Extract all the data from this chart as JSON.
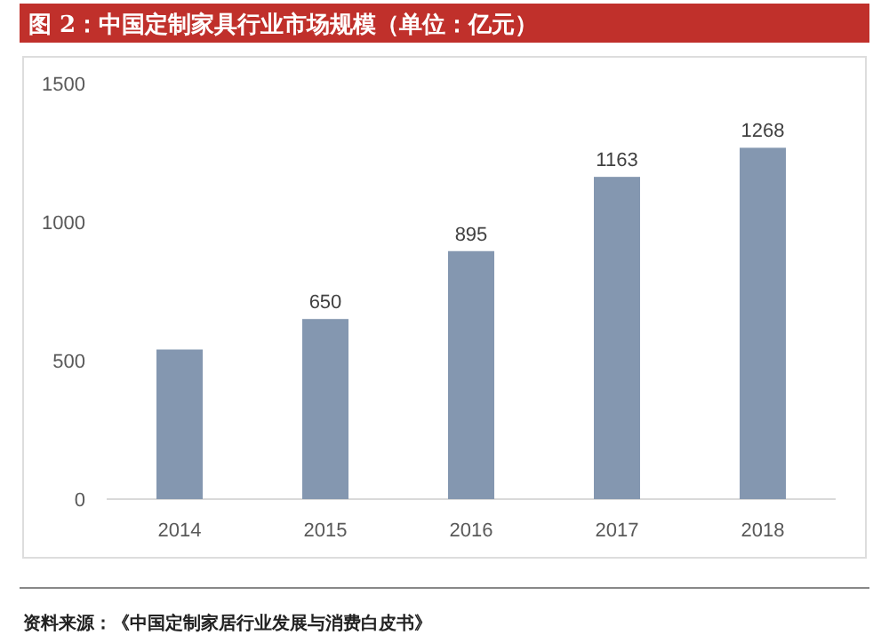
{
  "chart_data": {
    "type": "bar",
    "title": "图 2：中国定制家具行业市场规模（单位：亿元）",
    "categories": [
      "2014",
      "2015",
      "2016",
      "2017",
      "2018"
    ],
    "values": [
      540,
      650,
      895,
      1163,
      1268
    ],
    "value_labels": [
      null,
      "650",
      "895",
      "1163",
      "1268"
    ],
    "color": "#8497b0",
    "ylim": [
      0,
      1500
    ],
    "yticks": [
      0,
      500,
      1000,
      1500
    ],
    "grid": false,
    "annotations": [
      "资料来源：《中国定制家居行业发展与消费白皮书》"
    ]
  }
}
